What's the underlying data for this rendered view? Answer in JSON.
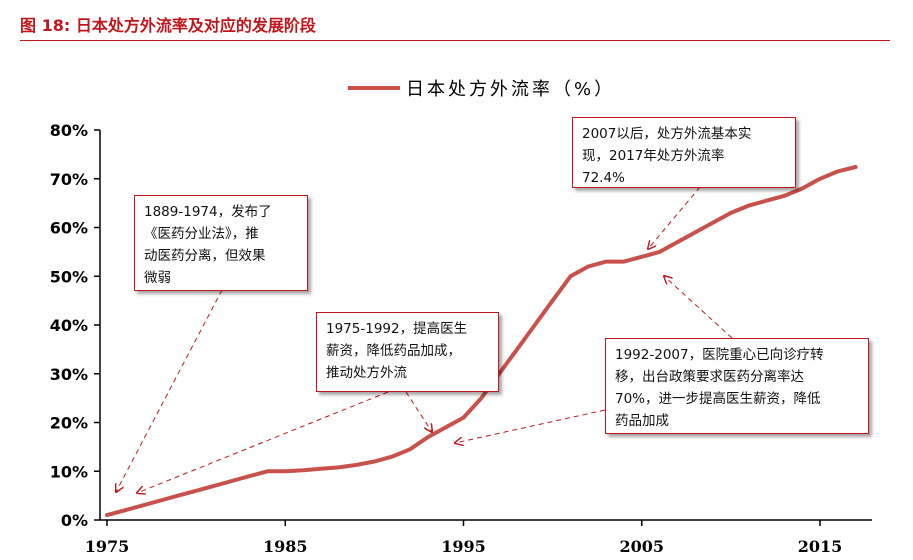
{
  "figure": {
    "number_label": "图 18:",
    "title": "日本处方外流率及对应的发展阶段"
  },
  "colors": {
    "accent": "#c0171d",
    "line": "#c8514b",
    "annotation_arrow": "#c0171d"
  },
  "annotations": [
    {
      "id": "a1",
      "lines": [
        "1889-1974，发布了",
        "《医药分业法》，推",
        "动医药分离，但效果",
        "微弱"
      ]
    },
    {
      "id": "a2",
      "lines": [
        "1975-1992，提高医生",
        "薪资，降低药品加成，",
        "推动处方外流"
      ]
    },
    {
      "id": "a3",
      "lines": [
        "2007以后，处方外流基本实",
        "现，2017年处方外流率",
        "72.4%"
      ]
    },
    {
      "id": "a4",
      "lines": [
        "1992-2007，医院重心已向诊疗转",
        "移，出台政策要求医药分离率达",
        "70%，进一步提高医生薪资，降低",
        "药品加成"
      ]
    }
  ],
  "chart_data": {
    "type": "line",
    "title": "",
    "xlabel": "",
    "ylabel": "",
    "xlim": [
      1975,
      2018
    ],
    "ylim": [
      0,
      80
    ],
    "x_ticks": [
      1975,
      1985,
      1995,
      2005,
      2015
    ],
    "x_tick_labels": [
      "1975",
      "1985",
      "1995",
      "2005",
      "2015"
    ],
    "y_ticks": [
      0,
      10,
      20,
      30,
      40,
      50,
      60,
      70,
      80
    ],
    "y_tick_labels": [
      "0%",
      "10%",
      "20%",
      "30%",
      "40%",
      "50%",
      "60%",
      "70%",
      "80%"
    ],
    "grid": false,
    "legend": {
      "position": "top-center",
      "entries": [
        "日本处方外流率（%）"
      ]
    },
    "series": [
      {
        "name": "日本处方外流率（%）",
        "x": [
          1975,
          1976,
          1977,
          1978,
          1979,
          1980,
          1981,
          1982,
          1983,
          1984,
          1985,
          1986,
          1987,
          1988,
          1989,
          1990,
          1991,
          1992,
          1993,
          1994,
          1995,
          1996,
          1997,
          1998,
          1999,
          2000,
          2001,
          2002,
          2003,
          2004,
          2005,
          2006,
          2007,
          2008,
          2009,
          2010,
          2011,
          2012,
          2013,
          2014,
          2015,
          2016,
          2017
        ],
        "values": [
          1.0,
          2.0,
          3.0,
          4.0,
          5.0,
          6.0,
          7.0,
          8.0,
          9.0,
          10.0,
          10.0,
          10.2,
          10.5,
          10.8,
          11.3,
          12.0,
          13.0,
          14.5,
          17.0,
          19.0,
          21.0,
          25.0,
          30.0,
          35.0,
          40.0,
          45.0,
          50.0,
          52.0,
          53.0,
          53.0,
          54.0,
          55.0,
          57.0,
          59.0,
          61.0,
          63.0,
          64.5,
          65.5,
          66.5,
          68.0,
          70.0,
          71.5,
          72.4
        ]
      }
    ]
  }
}
